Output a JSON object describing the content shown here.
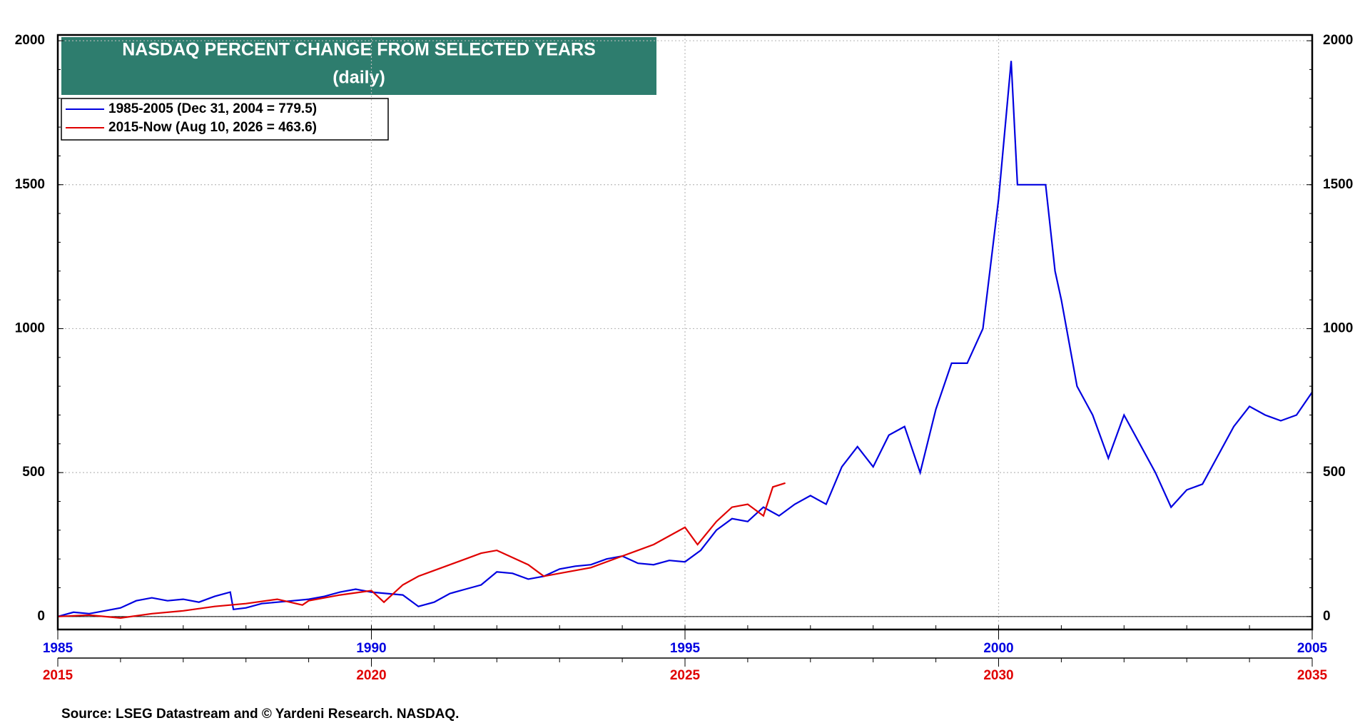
{
  "chart_data": {
    "type": "line",
    "title": "NASDAQ PERCENT CHANGE FROM SELECTED YEARS",
    "subtitle": "(daily)",
    "source": "Source: LSEG Datastream and © Yardeni Research. NASDAQ.",
    "xlim": [
      1985,
      2005
    ],
    "xticks": [
      1985,
      1990,
      1995,
      2000,
      2005
    ],
    "x2lim": [
      2015,
      2035
    ],
    "x2ticks": [
      2015,
      2020,
      2025,
      2030,
      2035
    ],
    "ylim": [
      -45,
      2020
    ],
    "yticks": [
      0,
      500,
      1000,
      1500,
      2000
    ],
    "grid": true,
    "legend": "upper left",
    "series": [
      {
        "name": "1985-2005 (Dec 31, 2004 = 779.5)",
        "color": "#0000e0",
        "axis": "x",
        "x": [
          1985.0,
          1985.25,
          1985.5,
          1985.75,
          1986.0,
          1986.25,
          1986.5,
          1986.75,
          1987.0,
          1987.25,
          1987.5,
          1987.75,
          1987.8,
          1988.0,
          1988.25,
          1988.5,
          1988.75,
          1989.0,
          1989.25,
          1989.5,
          1989.75,
          1990.0,
          1990.25,
          1990.5,
          1990.75,
          1991.0,
          1991.25,
          1991.5,
          1991.75,
          1992.0,
          1992.25,
          1992.5,
          1992.75,
          1993.0,
          1993.25,
          1993.5,
          1993.75,
          1994.0,
          1994.25,
          1994.5,
          1994.75,
          1995.0,
          1995.25,
          1995.5,
          1995.75,
          1996.0,
          1996.25,
          1996.5,
          1996.75,
          1997.0,
          1997.25,
          1997.5,
          1997.75,
          1998.0,
          1998.25,
          1998.5,
          1998.75,
          1999.0,
          1999.25,
          1999.5,
          1999.75,
          2000.0,
          2000.2,
          2000.3,
          2000.5,
          2000.75,
          2000.9,
          2001.0,
          2001.25,
          2001.5,
          2001.75,
          2002.0,
          2002.25,
          2002.5,
          2002.75,
          2003.0,
          2003.25,
          2003.5,
          2003.75,
          2004.0,
          2004.25,
          2004.5,
          2004.75,
          2005.0
        ],
        "values": [
          0,
          15,
          10,
          20,
          30,
          55,
          65,
          55,
          60,
          50,
          70,
          85,
          25,
          30,
          45,
          50,
          55,
          60,
          70,
          85,
          95,
          85,
          80,
          75,
          35,
          50,
          80,
          95,
          110,
          155,
          150,
          130,
          140,
          165,
          175,
          180,
          200,
          210,
          185,
          180,
          195,
          190,
          230,
          300,
          340,
          330,
          380,
          350,
          390,
          420,
          390,
          520,
          590,
          520,
          630,
          660,
          500,
          720,
          880,
          880,
          1000,
          1450,
          1930,
          1500,
          1500,
          1500,
          1200,
          1100,
          800,
          700,
          550,
          700,
          600,
          500,
          380,
          440,
          460,
          560,
          660,
          730,
          700,
          680,
          700,
          779.5
        ]
      },
      {
        "name": "2015-Now (Aug 10, 2026 = 463.6)",
        "color": "#e00000",
        "axis": "x2",
        "x": [
          2015.0,
          2015.5,
          2016.0,
          2016.5,
          2017.0,
          2017.5,
          2018.0,
          2018.5,
          2018.9,
          2019.0,
          2019.5,
          2020.0,
          2020.2,
          2020.5,
          2020.75,
          2021.0,
          2021.5,
          2021.75,
          2022.0,
          2022.5,
          2022.75,
          2023.0,
          2023.5,
          2024.0,
          2024.5,
          2024.75,
          2025.0,
          2025.2,
          2025.5,
          2025.75,
          2026.0,
          2026.25,
          2026.4,
          2026.6
        ],
        "values": [
          0,
          5,
          -5,
          10,
          20,
          35,
          45,
          60,
          40,
          55,
          75,
          90,
          50,
          110,
          140,
          160,
          200,
          220,
          230,
          180,
          140,
          150,
          170,
          210,
          250,
          280,
          310,
          250,
          330,
          380,
          390,
          350,
          450,
          463.6
        ]
      }
    ]
  }
}
